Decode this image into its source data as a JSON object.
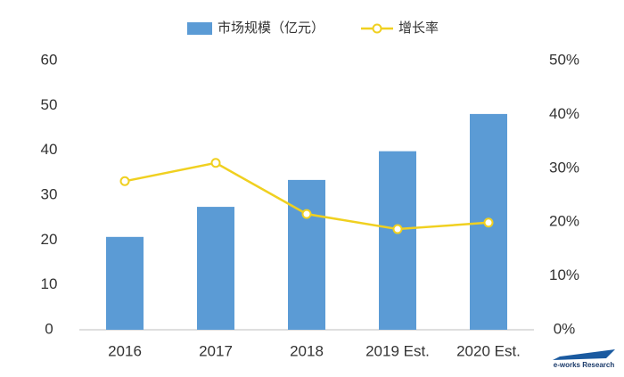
{
  "chart_data": {
    "type": "bar-line",
    "categories": [
      "2016",
      "2017",
      "2018",
      "2019 Est.",
      "2020 Est."
    ],
    "series": [
      {
        "name": "市场规模（亿元）",
        "color": "#5b9bd5",
        "type": "bar",
        "values": [
          20.7,
          27.4,
          33.4,
          39.8,
          48.1
        ]
      },
      {
        "name": "增长率",
        "color": "#f0d020",
        "type": "line",
        "axis": "y2",
        "values": [
          27.6,
          31.0,
          21.5,
          18.7,
          19.9
        ]
      }
    ],
    "ylim": [
      0,
      60
    ],
    "yticks": [
      0,
      10,
      20,
      30,
      40,
      50,
      60
    ],
    "y2lim": [
      0,
      50
    ],
    "y2ticks": [
      {
        "value": 0,
        "label": "0%"
      },
      {
        "value": 10,
        "label": "10%"
      },
      {
        "value": 20,
        "label": "20%"
      },
      {
        "value": 30,
        "label": "30%"
      },
      {
        "value": 40,
        "label": "40%"
      },
      {
        "value": 50,
        "label": "50%"
      }
    ],
    "grid": false,
    "source": "e-works Research"
  }
}
